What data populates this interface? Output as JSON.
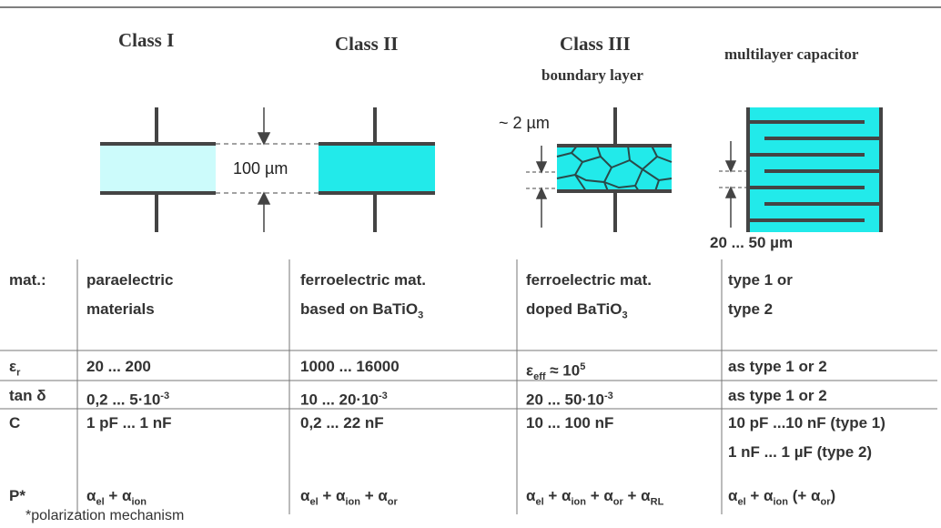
{
  "header": {
    "classes": [
      {
        "title": "Class I"
      },
      {
        "title": "Class II"
      },
      {
        "title": "Class III",
        "subtitle": "boundary layer"
      },
      {
        "title": "multilayer capacitor"
      }
    ]
  },
  "diagram": {
    "class1_gap": "100 µm",
    "class3_gap": "~ 2 µm",
    "multilayer_gap": "20 ... 50 µm"
  },
  "table": {
    "rows": [
      [
        [
          [
            "mat.:"
          ]
        ],
        [
          [
            "paraelectric"
          ],
          [
            "materials"
          ]
        ],
        [
          [
            "ferroelectric mat."
          ],
          [
            "based on BaTiO",
            {
              "sub": "3"
            }
          ]
        ],
        [
          [
            "ferroelectric mat."
          ],
          [
            "doped BaTiO",
            {
              "sub": "3"
            }
          ]
        ],
        [
          [
            "type 1 or"
          ],
          [
            "type 2"
          ]
        ]
      ],
      [
        [
          [
            "ε",
            {
              "sub": "r"
            }
          ]
        ],
        [
          [
            "20 ... 200"
          ]
        ],
        [
          [
            "1000 ... 16000"
          ]
        ],
        [
          [
            "ε",
            {
              "sub": "eff"
            },
            " ≈ 10",
            {
              "sup": "5"
            }
          ]
        ],
        [
          [
            "as type 1 or 2"
          ]
        ]
      ],
      [
        [
          [
            "tan δ"
          ]
        ],
        [
          [
            "0,2 ... 5·10",
            {
              "sup": "-3"
            }
          ]
        ],
        [
          [
            "10 ... 20·10",
            {
              "sup": "-3"
            }
          ]
        ],
        [
          [
            "20 ... 50·10",
            {
              "sup": "-3"
            }
          ]
        ],
        [
          [
            "as type 1 or 2"
          ]
        ]
      ],
      [
        [
          [
            "C"
          ]
        ],
        [
          [
            "1 pF ... 1 nF"
          ]
        ],
        [
          [
            "0,2 ... 22 nF"
          ]
        ],
        [
          [
            "10 ... 100 nF"
          ]
        ],
        [
          [
            "10 pF ...10 nF (type 1)"
          ],
          [
            "1 nF ... 1 µF (type 2)"
          ]
        ]
      ],
      [
        [
          [
            "P*"
          ]
        ],
        [
          [
            "α",
            {
              "sub": "el"
            },
            " + α",
            {
              "sub": "ion"
            }
          ]
        ],
        [
          [
            "α",
            {
              "sub": "el"
            },
            " + α",
            {
              "sub": "ion"
            },
            " + α",
            {
              "sub": "or"
            }
          ]
        ],
        [
          [
            "α",
            {
              "sub": "el"
            },
            " + α",
            {
              "sub": "ion"
            },
            " + α",
            {
              "sub": "or"
            },
            " + α",
            {
              "sub": "RL"
            }
          ]
        ],
        [
          [
            "α",
            {
              "sub": "el"
            },
            " + α",
            {
              "sub": "ion"
            },
            " (+ α",
            {
              "sub": "or"
            },
            ")"
          ]
        ]
      ]
    ]
  },
  "footnote": "*polarization mechanism"
}
